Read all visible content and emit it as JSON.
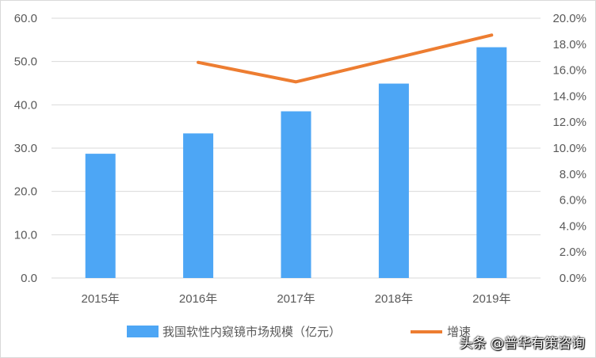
{
  "chart_data": {
    "type": "bar",
    "categories": [
      "2015年",
      "2016年",
      "2017年",
      "2018年",
      "2019年"
    ],
    "series": [
      {
        "name": "我国软性内窥镜市场规模（亿元）",
        "type": "bar",
        "axis": "left",
        "color": "#4da6f5",
        "values": [
          28.7,
          33.4,
          38.5,
          44.9,
          53.3
        ]
      },
      {
        "name": "增速",
        "type": "line",
        "axis": "right",
        "color": "#ed7d31",
        "values": [
          null,
          16.6,
          15.1,
          16.9,
          18.7
        ]
      }
    ],
    "y_left": {
      "min": 0,
      "max": 60,
      "step": 10,
      "tick_labels": [
        "0.0",
        "10.0",
        "20.0",
        "30.0",
        "40.0",
        "50.0",
        "60.0"
      ]
    },
    "y_right": {
      "min": 0,
      "max": 20,
      "step": 2,
      "unit": "%",
      "tick_labels": [
        "0.0%",
        "2.0%",
        "4.0%",
        "6.0%",
        "8.0%",
        "10.0%",
        "12.0%",
        "14.0%",
        "16.0%",
        "18.0%",
        "20.0%"
      ]
    },
    "grid": true,
    "legend_position": "bottom"
  },
  "watermark": "头条 @普华有策咨询"
}
